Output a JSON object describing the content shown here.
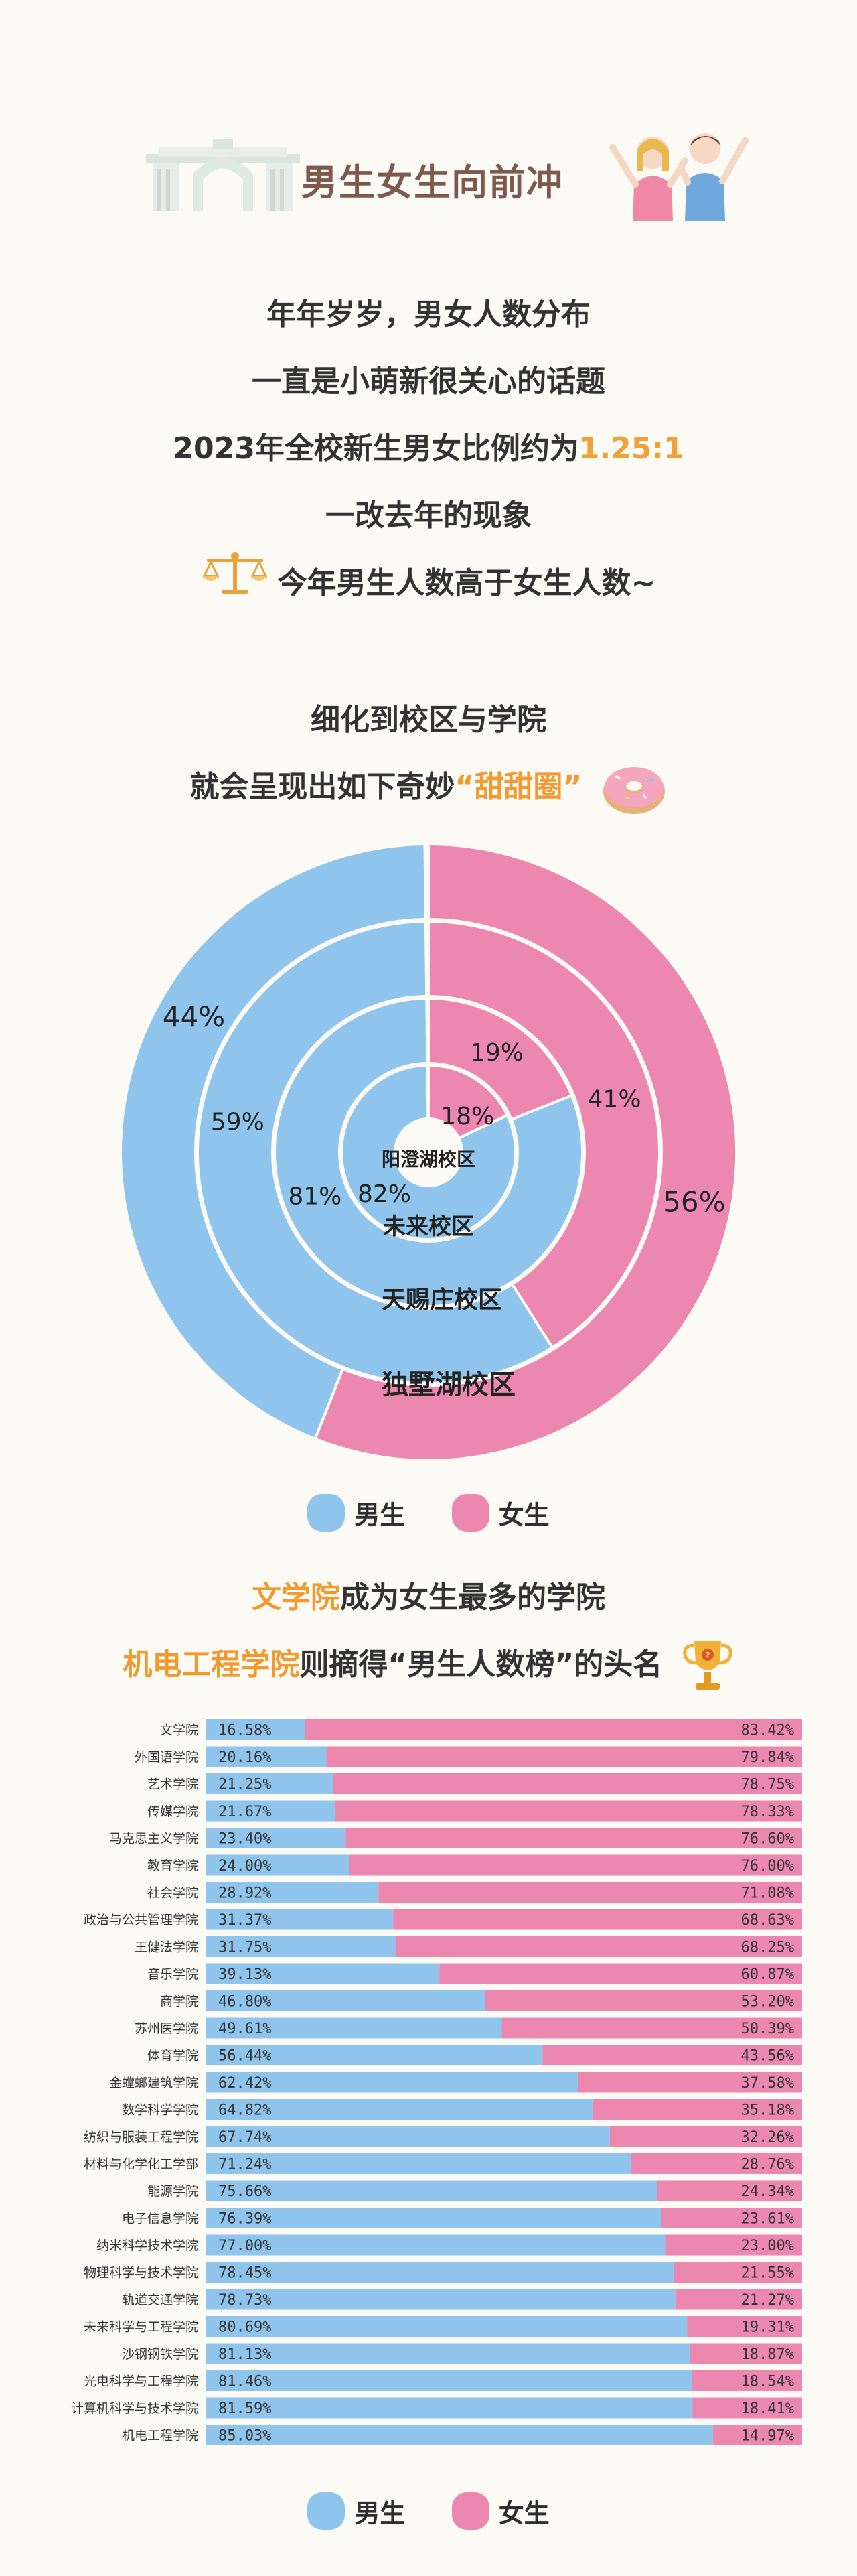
{
  "header": {
    "title": "男生女生向前冲",
    "gate_icon": "campus-gate-icon",
    "people_icon": "cheering-students-icon"
  },
  "intro": {
    "line1": "年年岁岁，男女人数分布",
    "line2": "一直是小萌新很关心的话题",
    "line3_prefix": "2023年全校新生男女比例约为",
    "line3_ratio": "1.25:1",
    "line4": "一改去年的现象",
    "line5": "今年男生人数高于女生人数~",
    "scale_icon": "balance-scale-icon"
  },
  "donut_intro": {
    "line1": "细化到校区与学院",
    "line2_prefix": "就会呈现出如下奇妙",
    "line2_highlight": "“甜甜圈”",
    "donut_icon": "donut-icon"
  },
  "colors": {
    "male": "#8fc4ec",
    "female": "#ec87af"
  },
  "legend": {
    "male": "男生",
    "female": "女生"
  },
  "chart_data": [
    {
      "type": "pie",
      "variant": "nested-donut",
      "series_order": [
        "male",
        "female"
      ],
      "rings": [
        {
          "name": "阳澄湖校区",
          "male": 82,
          "female": 18,
          "male_label": "82%",
          "female_label": "18%"
        },
        {
          "name": "未来校区",
          "male": 81,
          "female": 19,
          "male_label": "81%",
          "female_label": "19%"
        },
        {
          "name": "天赐庄校区",
          "male": 59,
          "female": 41,
          "male_label": "59%",
          "female_label": "41%"
        },
        {
          "name": "独墅湖校区",
          "male": 44,
          "female": 56,
          "male_label": "44%",
          "female_label": "56%"
        }
      ],
      "legend_position": "bottom"
    },
    {
      "type": "bar",
      "orientation": "horizontal",
      "stacked": true,
      "normalized": true,
      "categories": [
        "文学院",
        "外国语学院",
        "艺术学院",
        "传媒学院",
        "马克思主义学院",
        "教育学院",
        "社会学院",
        "政治与公共管理学院",
        "王健法学院",
        "音乐学院",
        "商学院",
        "苏州医学院",
        "体育学院",
        "金螳螂建筑学院",
        "数学科学学院",
        "纺织与服装工程学院",
        "材料与化学化工学部",
        "能源学院",
        "电子信息学院",
        "纳米科学技术学院",
        "物理科学与技术学院",
        "轨道交通学院",
        "未来科学与工程学院",
        "沙钢钢铁学院",
        "光电科学与工程学院",
        "计算机科学与技术学院",
        "机电工程学院"
      ],
      "series": [
        {
          "name": "男生",
          "key": "male",
          "values": [
            16.58,
            20.16,
            21.25,
            21.67,
            23.4,
            24.0,
            28.92,
            31.37,
            31.75,
            39.13,
            46.8,
            49.61,
            56.44,
            62.42,
            64.82,
            67.74,
            71.24,
            75.66,
            76.39,
            77.0,
            78.45,
            78.73,
            80.69,
            81.13,
            81.46,
            81.59,
            85.03
          ],
          "labels": [
            "16.58%",
            "20.16%",
            "21.25%",
            "21.67%",
            "23.40%",
            "24.00%",
            "28.92%",
            "31.37%",
            "31.75%",
            "39.13%",
            "46.80%",
            "49.61%",
            "56.44%",
            "62.42%",
            "64.82%",
            "67.74%",
            "71.24%",
            "75.66%",
            "76.39%",
            "77.00%",
            "78.45%",
            "78.73%",
            "80.69%",
            "81.13%",
            "81.46%",
            "81.59%",
            "85.03%"
          ]
        },
        {
          "name": "女生",
          "key": "female",
          "values": [
            83.42,
            79.84,
            78.75,
            78.33,
            76.6,
            76.0,
            71.08,
            68.63,
            68.25,
            60.87,
            53.2,
            50.39,
            43.56,
            37.58,
            35.18,
            32.26,
            28.76,
            24.34,
            23.61,
            23.0,
            21.55,
            21.27,
            19.31,
            18.87,
            18.54,
            18.41,
            14.97
          ],
          "labels": [
            "83.42%",
            "79.84%",
            "78.75%",
            "78.33%",
            "76.60%",
            "76.00%",
            "71.08%",
            "68.63%",
            "68.25%",
            "60.87%",
            "53.20%",
            "50.39%",
            "43.56%",
            "37.58%",
            "35.18%",
            "32.26%",
            "28.76%",
            "24.34%",
            "23.61%",
            "23.00%",
            "21.55%",
            "21.27%",
            "19.31%",
            "18.87%",
            "18.54%",
            "18.41%",
            "14.97%"
          ]
        }
      ],
      "xlim": [
        0,
        100
      ],
      "legend_position": "bottom"
    }
  ],
  "section2": {
    "line1_highlight": "文学院",
    "line1_rest": "成为女生最多的学院",
    "line2_highlight": "机电工程学院",
    "line2_rest": "则摘得“男生人数榜”的头名",
    "trophy_icon": "trophy-icon"
  }
}
